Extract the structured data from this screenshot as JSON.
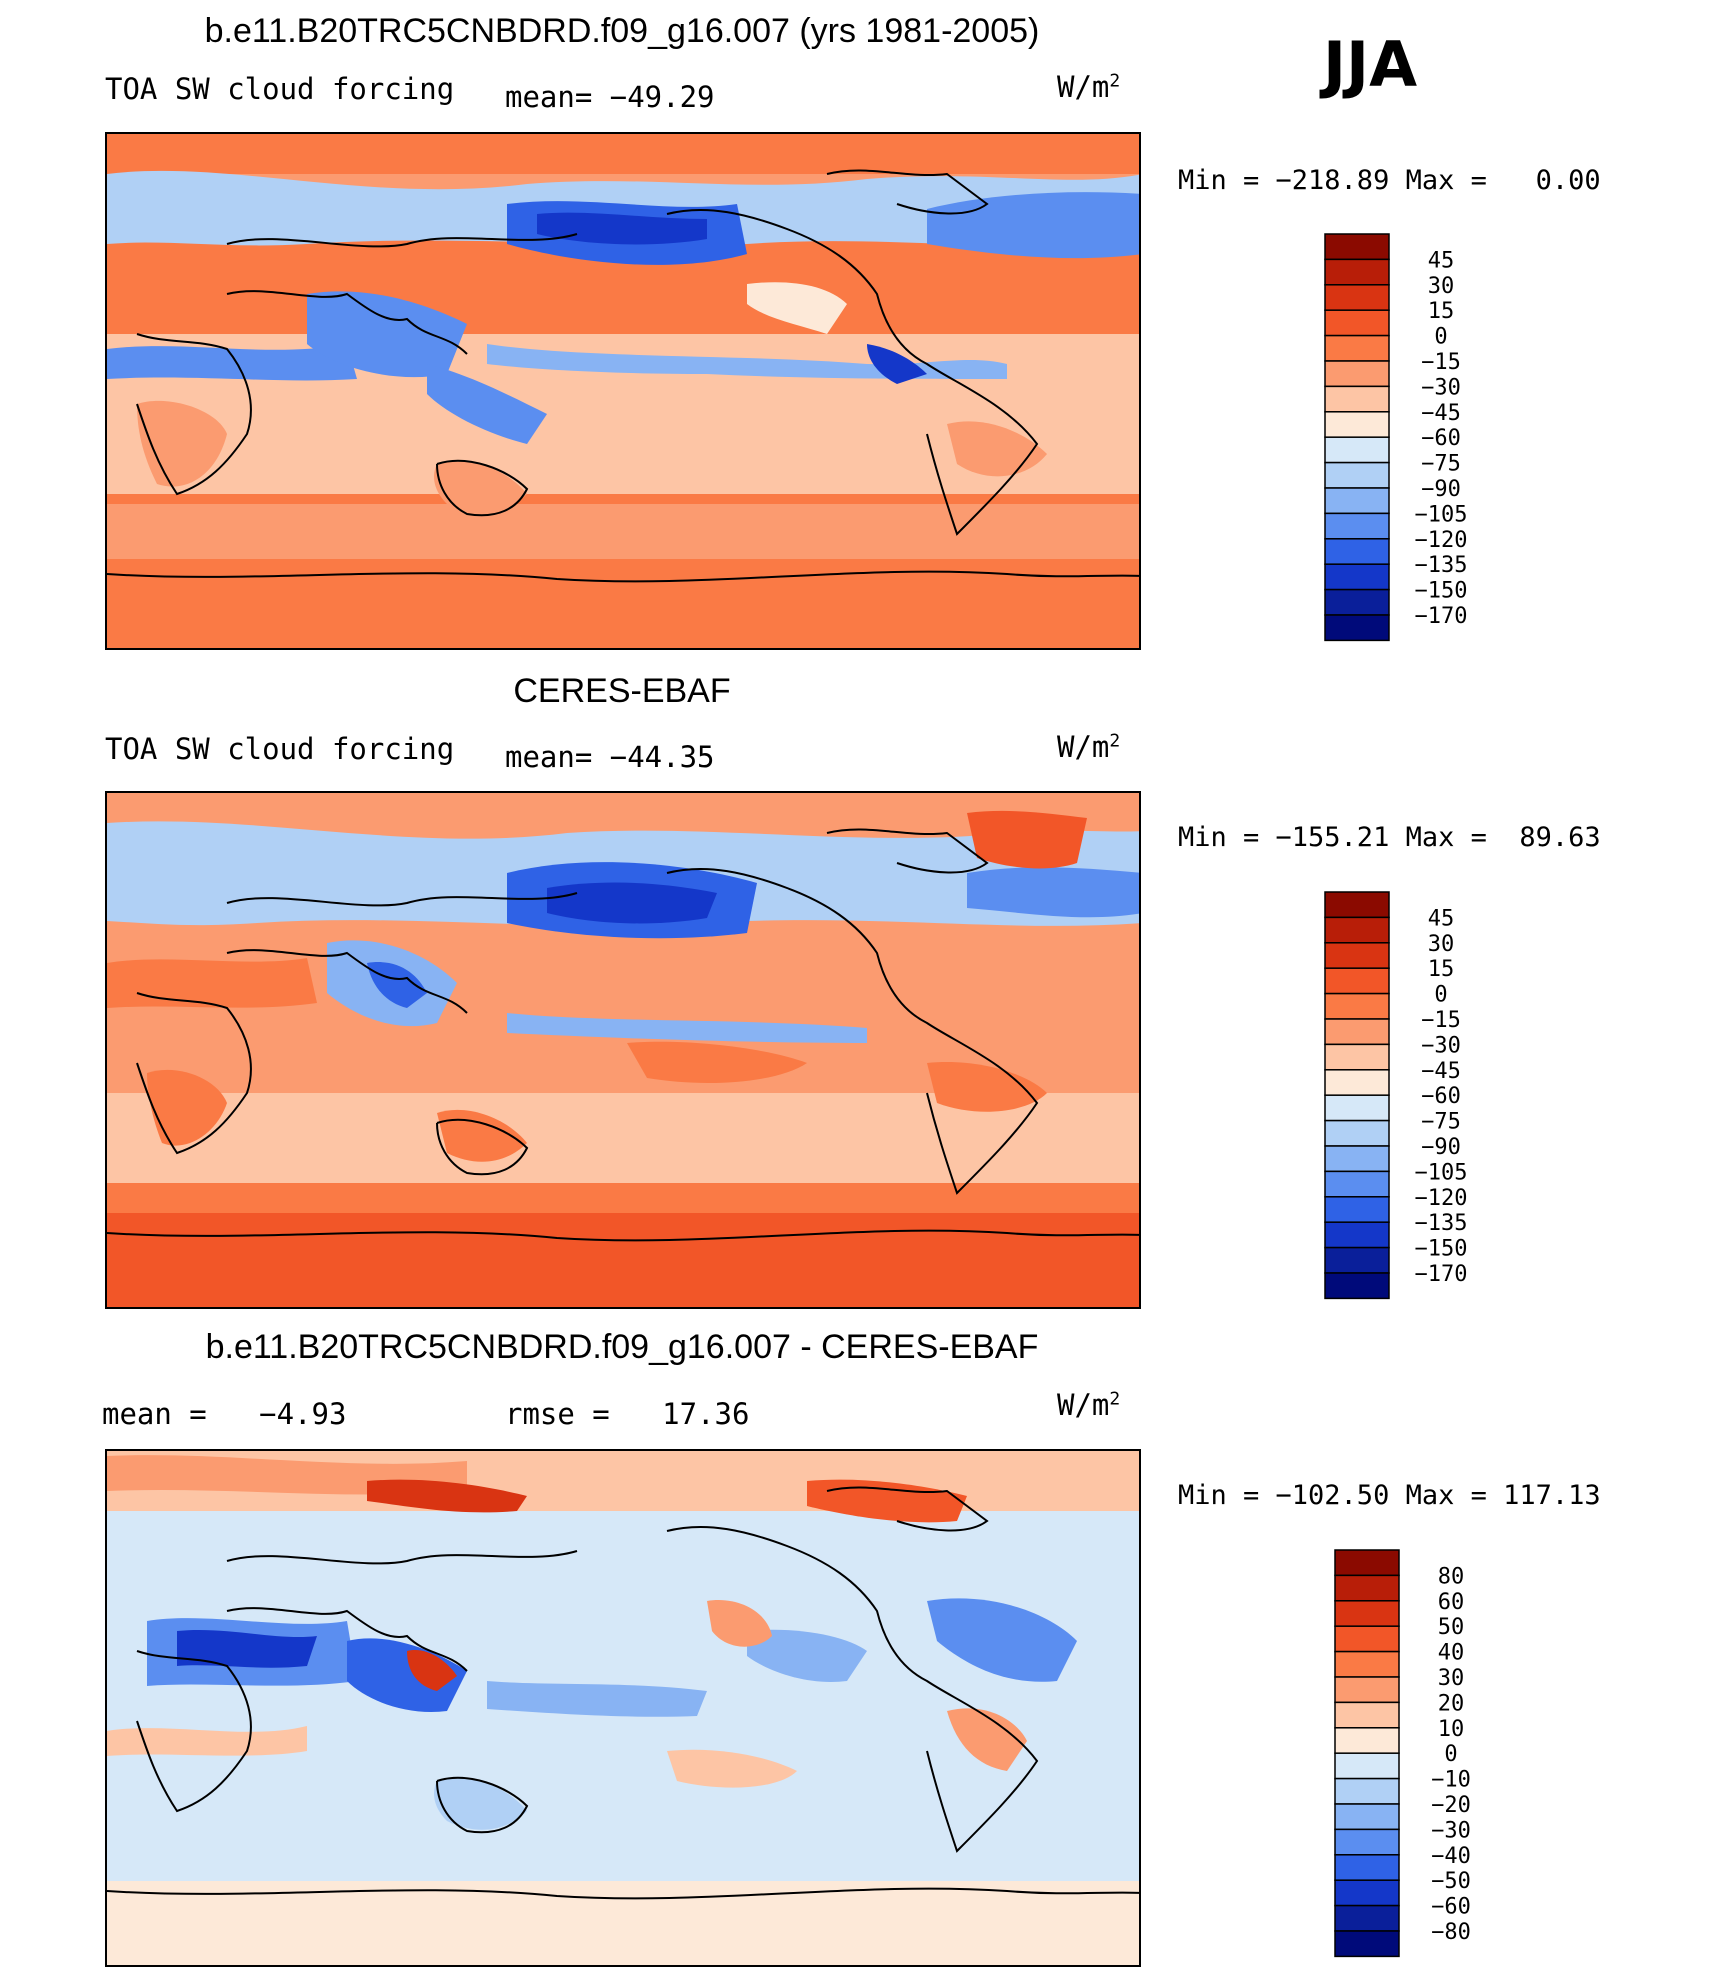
{
  "season": "JJA",
  "panels": [
    {
      "title": "b.e11.B20TRC5CNBDRD.f09_g16.007 (yrs 1981-2005)",
      "left_label": "TOA SW cloud forcing",
      "stat": "mean= −49.29",
      "units": "W/m",
      "units_sup": "2",
      "minmax": "Min = −218.89 Max =   0.00",
      "colorbar": {
        "labels": [
          "45",
          "30",
          "15",
          "0",
          "−15",
          "−30",
          "−45",
          "−60",
          "−75",
          "−90",
          "−105",
          "−120",
          "−135",
          "−150",
          "−170"
        ],
        "colors": [
          "#8b0a00",
          "#b81e08",
          "#d93412",
          "#f25628",
          "#fa7a45",
          "#fb9b70",
          "#fdc5a5",
          "#fde9d8",
          "#d6e8f8",
          "#b0d0f5",
          "#88b3f3",
          "#5b8ef0",
          "#2f62e6",
          "#1437c9",
          "#0a1f9a",
          "#000a7a"
        ]
      }
    },
    {
      "title": "CERES-EBAF",
      "left_label": "TOA SW cloud forcing",
      "stat": "mean= −44.35",
      "units": "W/m",
      "units_sup": "2",
      "minmax": "Min = −155.21 Max =  89.63",
      "colorbar": {
        "labels": [
          "45",
          "30",
          "15",
          "0",
          "−15",
          "−30",
          "−45",
          "−60",
          "−75",
          "−90",
          "−105",
          "−120",
          "−135",
          "−150",
          "−170"
        ],
        "colors": [
          "#8b0a00",
          "#b81e08",
          "#d93412",
          "#f25628",
          "#fa7a45",
          "#fb9b70",
          "#fdc5a5",
          "#fde9d8",
          "#d6e8f8",
          "#b0d0f5",
          "#88b3f3",
          "#5b8ef0",
          "#2f62e6",
          "#1437c9",
          "#0a1f9a",
          "#000a7a"
        ]
      }
    },
    {
      "title": "b.e11.B20TRC5CNBDRD.f09_g16.007 - CERES-EBAF",
      "left_label": "mean =   −4.93",
      "stat": "rmse =   17.36",
      "units": "W/m",
      "units_sup": "2",
      "minmax": "Min = −102.50 Max = 117.13",
      "colorbar": {
        "labels": [
          "80",
          "60",
          "50",
          "40",
          "30",
          "20",
          "10",
          "0",
          "−10",
          "−20",
          "−30",
          "−40",
          "−50",
          "−60",
          "−80"
        ],
        "colors": [
          "#8b0a00",
          "#b81e08",
          "#d93412",
          "#f25628",
          "#fa7a45",
          "#fb9b70",
          "#fdc5a5",
          "#fde9d8",
          "#d6e8f8",
          "#b0d0f5",
          "#88b3f3",
          "#5b8ef0",
          "#2f62e6",
          "#1437c9",
          "#0a1f9a",
          "#000a7a"
        ]
      }
    }
  ]
}
